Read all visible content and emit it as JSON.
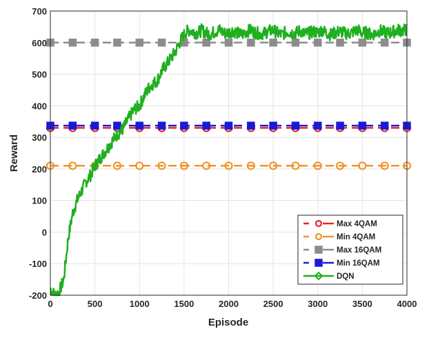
{
  "chart_data": {
    "type": "line",
    "title": "",
    "xlabel": "Episode",
    "ylabel": "Reward",
    "xlim": [
      0,
      4000
    ],
    "ylim": [
      -200,
      700
    ],
    "xticks": [
      0,
      500,
      1000,
      1500,
      2000,
      2500,
      3000,
      3500,
      4000
    ],
    "yticks": [
      -200,
      -100,
      0,
      100,
      200,
      300,
      400,
      500,
      600,
      700
    ],
    "grid": true,
    "legend_position": "bottom-right",
    "marker_x": [
      0,
      250,
      500,
      750,
      1000,
      1250,
      1500,
      1750,
      2000,
      2250,
      2500,
      2750,
      3000,
      3250,
      3500,
      3750,
      4000
    ],
    "series": [
      {
        "name": "Max 4QAM",
        "value": 330,
        "color": "#e8262a",
        "marker": "circle",
        "style": "dashed"
      },
      {
        "name": "Min 4QAM",
        "value": 210,
        "color": "#f0952a",
        "marker": "circle",
        "style": "dashed"
      },
      {
        "name": "Max 16QAM",
        "value": 600,
        "color": "#8c8c8c",
        "marker": "square",
        "style": "dashed"
      },
      {
        "name": "Min 16QAM",
        "value": 337,
        "color": "#1a1ad6",
        "marker": "square",
        "style": "dashed"
      },
      {
        "name": "DQN",
        "color": "#1faf1f",
        "marker": "diamond",
        "style": "solid",
        "x_step": 50,
        "values": [
          -180,
          -200,
          -190,
          -150,
          -20,
          60,
          100,
          130,
          160,
          180,
          210,
          230,
          250,
          270,
          290,
          310,
          320,
          345,
          370,
          390,
          400,
          430,
          455,
          470,
          480,
          510,
          530,
          550,
          570,
          600,
          625,
          640,
          635,
          630,
          640,
          630,
          628,
          635,
          640,
          630,
          632,
          638,
          630,
          625,
          635,
          640,
          632,
          628,
          630,
          636,
          640,
          630,
          625,
          635,
          632,
          630,
          638,
          628,
          630,
          635,
          632,
          640,
          630,
          625,
          632,
          636,
          630,
          628,
          635,
          640,
          630,
          632,
          625,
          630,
          638,
          632,
          630,
          635,
          640,
          638,
          642
        ]
      }
    ]
  }
}
